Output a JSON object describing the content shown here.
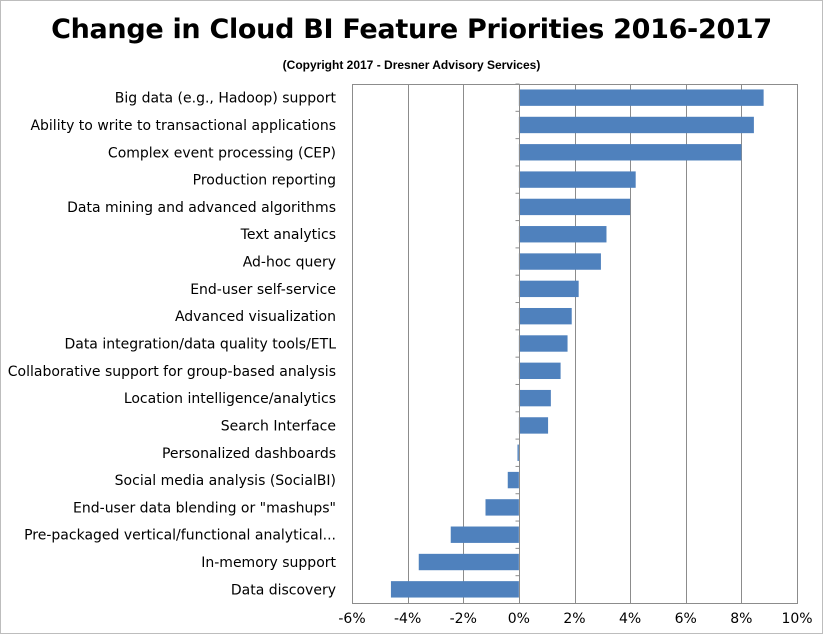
{
  "chart_data": {
    "type": "bar",
    "orientation": "horizontal",
    "title": "Change in Cloud BI Feature Priorities 2016-2017",
    "subtitle": "(Copyright 2017 - Dresner Advisory Services)",
    "xlim": [
      -6,
      10
    ],
    "xticks": [
      -6,
      -4,
      -2,
      0,
      2,
      4,
      6,
      8,
      10
    ],
    "tick_labels": [
      "-6%",
      "-4%",
      "-2%",
      "0%",
      "2%",
      "4%",
      "6%",
      "8%",
      "10%"
    ],
    "grid": true,
    "bar_color": "#4f81bd",
    "categories": [
      "Big data (e.g., Hadoop) support",
      "Ability to write to transactional applications",
      "Complex event processing (CEP)",
      "Production reporting",
      "Data mining and advanced algorithms",
      "Text analytics",
      "Ad-hoc query",
      "End-user self-service",
      "Advanced visualization",
      "Data integration/data quality tools/ETL",
      "Collaborative support for group-based analysis",
      "Location intelligence/analytics",
      "Search Interface",
      "Personalized dashboards",
      "Social media analysis (SocialBI)",
      "End-user data blending or \"mashups\"",
      "Pre-packaged vertical/functional analytical...",
      "In-memory support",
      "Data discovery"
    ],
    "values": [
      8.8,
      8.45,
      8.0,
      4.2,
      4.0,
      3.15,
      2.95,
      2.15,
      1.9,
      1.75,
      1.5,
      1.15,
      1.05,
      -0.05,
      -0.4,
      -1.2,
      -2.45,
      -3.6,
      -4.6
    ]
  }
}
